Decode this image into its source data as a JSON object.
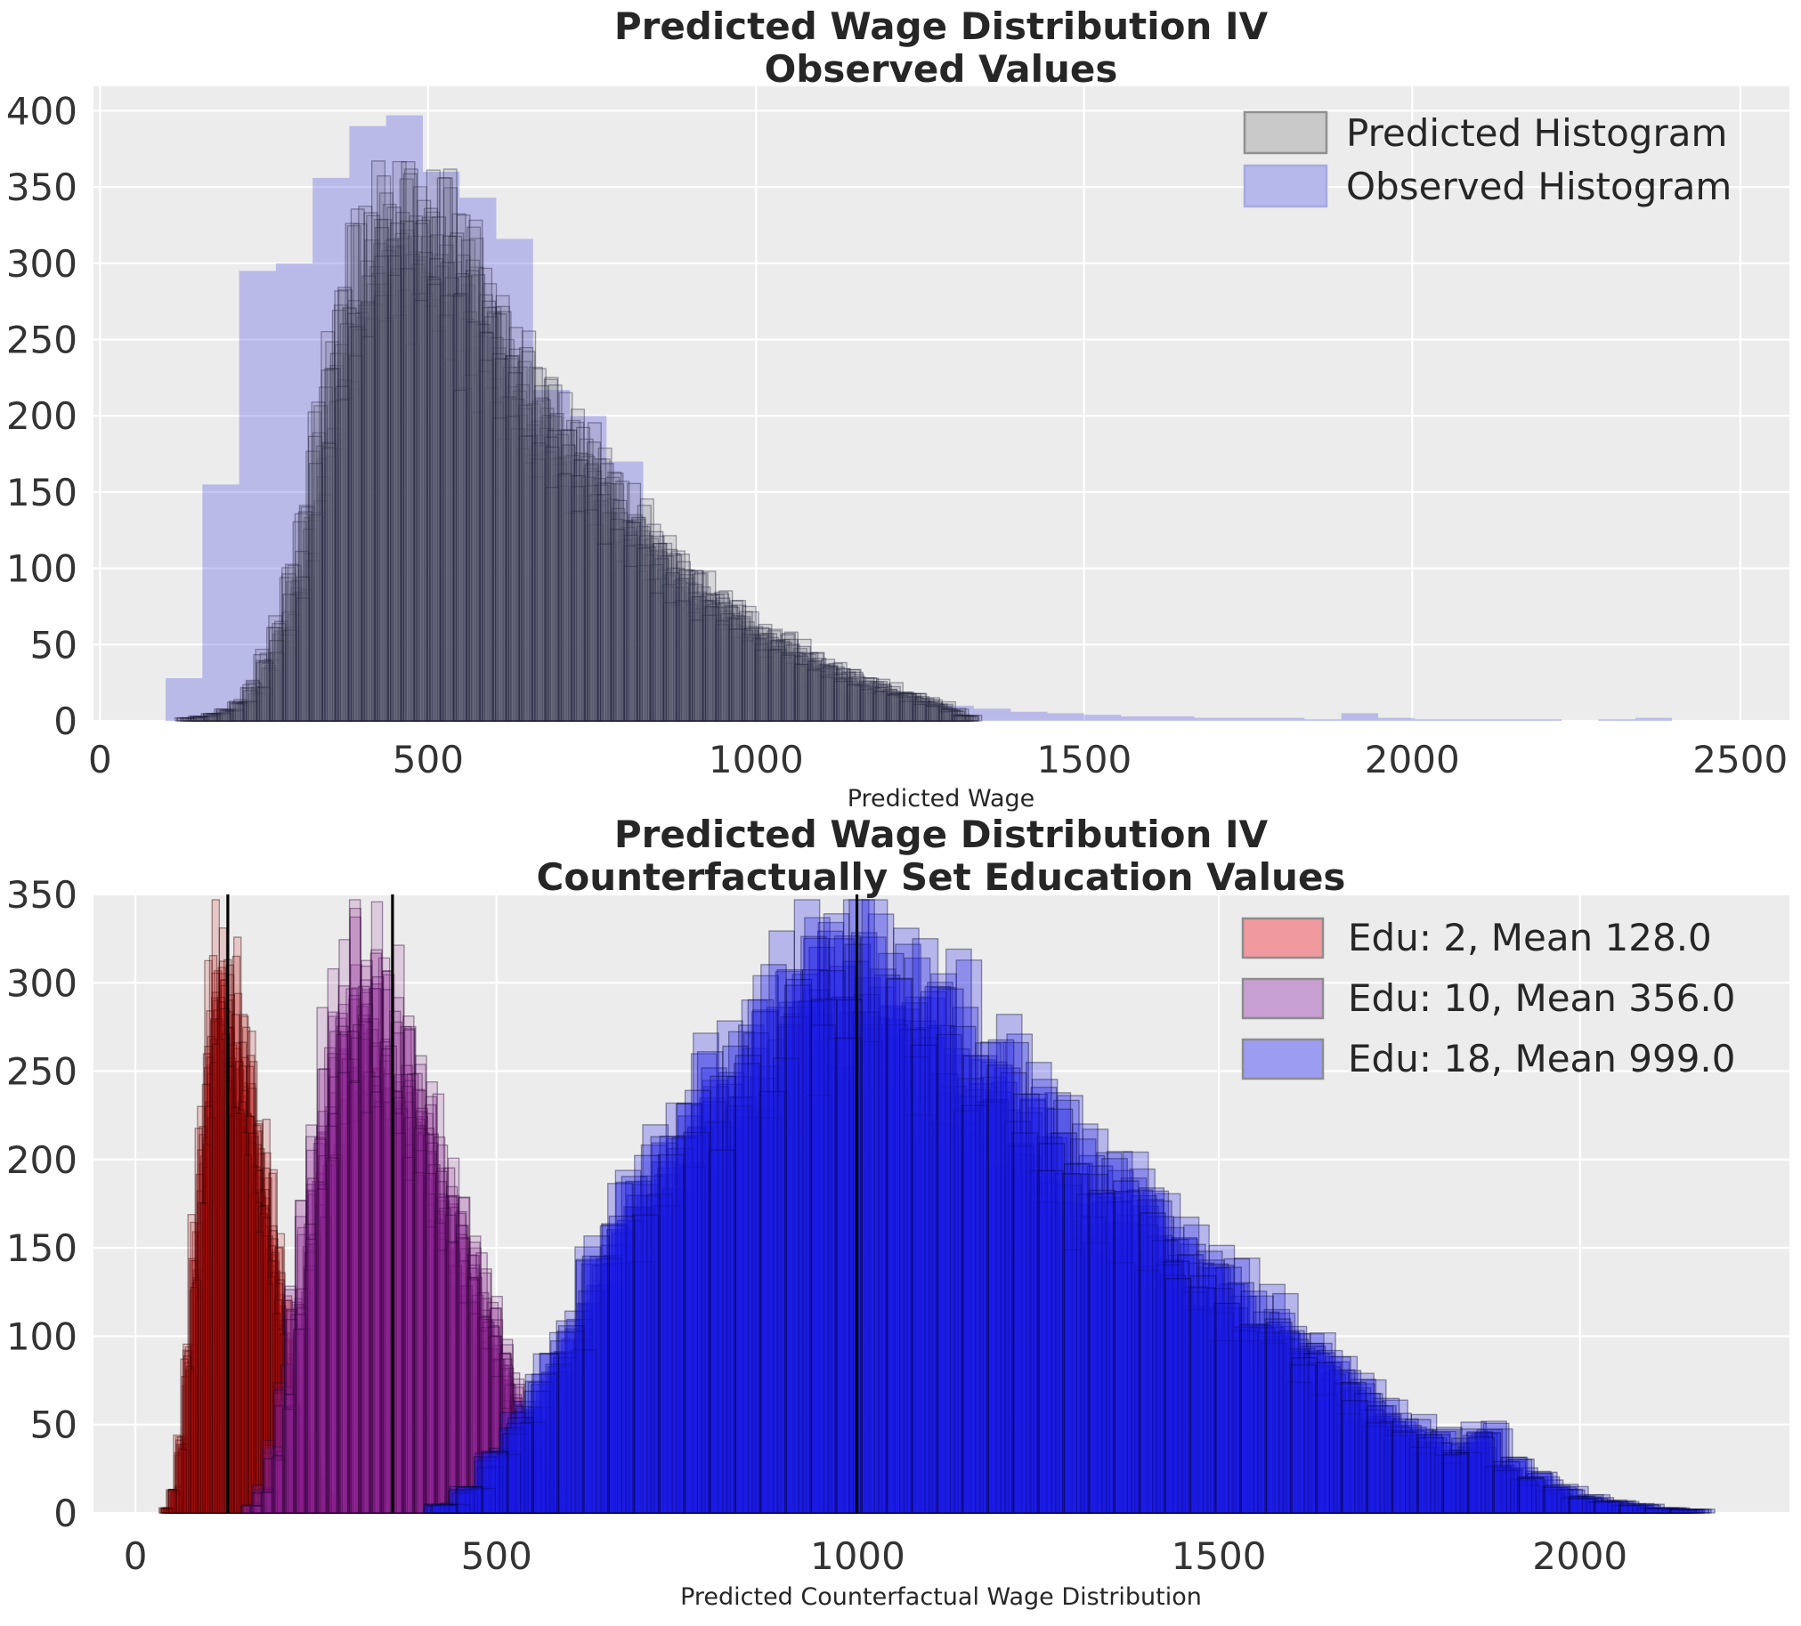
{
  "style": {
    "figure_bg": "#ffffff",
    "axes_bg": "#ececec",
    "grid_color": "#ffffff",
    "tick_color": "#333333",
    "title_color": "#262626",
    "mean_line_color": "#000000"
  },
  "chart_data": [
    {
      "type": "histogram",
      "title_line1": "Predicted Wage Distribution IV",
      "title_line2": "Observed Values",
      "xlabel": "Predicted Wage",
      "xlim": [
        -10,
        2575
      ],
      "ylim": [
        0,
        416
      ],
      "xticks": [
        0,
        500,
        1000,
        1500,
        2000,
        2500
      ],
      "yticks": [
        0,
        50,
        100,
        150,
        200,
        250,
        300,
        350,
        400
      ],
      "legend": [
        {
          "label": "Predicted Histogram",
          "fill": "#c9c9c9",
          "border": "#909090"
        },
        {
          "label": "Observed Histogram",
          "fill": "#b6b7ea",
          "border": "#a8a9de"
        }
      ],
      "series": [
        {
          "name": "Observed Histogram",
          "bin_start": 100,
          "bin_width": 56,
          "counts": [
            28,
            155,
            295,
            300,
            356,
            390,
            397,
            360,
            343,
            316,
            217,
            200,
            170,
            85,
            75,
            55,
            33,
            26,
            20,
            15,
            12,
            10,
            8,
            6,
            5,
            4,
            3,
            3,
            2,
            2,
            2,
            1,
            5,
            2,
            1,
            1,
            1,
            1,
            0,
            1,
            2
          ],
          "fill": "rgba(70,70,225,0.30)",
          "stroke": "none",
          "copies": 1,
          "seed": 5
        },
        {
          "name": "Predicted Histogram",
          "bin_start": 130,
          "bin_width": 20,
          "counts": [
            2,
            3,
            5,
            8,
            14,
            25,
            45,
            70,
            100,
            140,
            200,
            255,
            295,
            320,
            340,
            355,
            365,
            362,
            355,
            345,
            335,
            320,
            305,
            285,
            265,
            248,
            232,
            220,
            210,
            200,
            188,
            175,
            163,
            152,
            142,
            132,
            122,
            112,
            103,
            95,
            87,
            80,
            73,
            67,
            61,
            56,
            51,
            46,
            42,
            38,
            34,
            30,
            27,
            24,
            21,
            18,
            15,
            12,
            8,
            4
          ],
          "fill": "rgba(105,105,125,0.16)",
          "stroke": "rgba(22,22,48,0.38)",
          "copies": 16,
          "seed": 11
        }
      ],
      "mean_lines": []
    },
    {
      "type": "histogram",
      "title_line1": "Predicted Wage Distribution IV",
      "title_line2": "Counterfactually Set Education Values",
      "xlabel": "Predicted Counterfactual Wage Distribution",
      "xlim": [
        -58,
        2290
      ],
      "ylim": [
        0,
        350
      ],
      "xticks": [
        0,
        500,
        1000,
        1500,
        2000
      ],
      "yticks": [
        0,
        50,
        100,
        150,
        200,
        250,
        300,
        350
      ],
      "legend": [
        {
          "label": "Edu: 2, Mean 128.0",
          "fill": "#f0999e",
          "border": "#8d8d8d"
        },
        {
          "label": "Edu: 10, Mean 356.0",
          "fill": "#c79fd2",
          "border": "#8d8d8d"
        },
        {
          "label": "Edu: 18, Mean 999.0",
          "fill": "#9c9cf2",
          "border": "#8d8d8d"
        }
      ],
      "series": [
        {
          "name": "Edu: 2, Mean 128.0",
          "bin_start": 40,
          "bin_width": 10,
          "counts": [
            3,
            15,
            45,
            100,
            170,
            240,
            300,
            335,
            330,
            310,
            290,
            270,
            245,
            215,
            185,
            155,
            125,
            95,
            70,
            50,
            35,
            22,
            12,
            5
          ],
          "fill": "rgba(196,18,18,0.17)",
          "stroke": "rgba(45,0,0,0.42)",
          "copies": 18,
          "seed": 21
        },
        {
          "name": "Edu: 10, Mean 356.0",
          "bin_start": 155,
          "bin_width": 15,
          "counts": [
            5,
            15,
            40,
            80,
            130,
            180,
            230,
            270,
            300,
            320,
            335,
            330,
            315,
            300,
            285,
            265,
            245,
            225,
            200,
            180,
            160,
            140,
            120,
            100,
            80,
            60,
            40,
            22,
            10
          ],
          "fill": "rgba(141,36,150,0.17)",
          "stroke": "rgba(40,0,48,0.42)",
          "copies": 18,
          "seed": 31
        },
        {
          "name": "Edu: 18, Mean 999.0",
          "bin_start": 420,
          "bin_width": 35,
          "counts": [
            5,
            15,
            35,
            60,
            85,
            110,
            150,
            185,
            200,
            230,
            250,
            260,
            280,
            300,
            320,
            330,
            337,
            325,
            315,
            300,
            290,
            275,
            260,
            245,
            235,
            205,
            195,
            200,
            185,
            155,
            145,
            135,
            120,
            115,
            100,
            90,
            75,
            62,
            52,
            45,
            40,
            50,
            30,
            22,
            15,
            10,
            7,
            5,
            3,
            2,
            1
          ],
          "fill": "rgba(26,26,232,0.26)",
          "stroke": "rgba(0,0,40,0.40)",
          "copies": 16,
          "seed": 41
        }
      ],
      "mean_lines": [
        128,
        356,
        999
      ]
    }
  ]
}
